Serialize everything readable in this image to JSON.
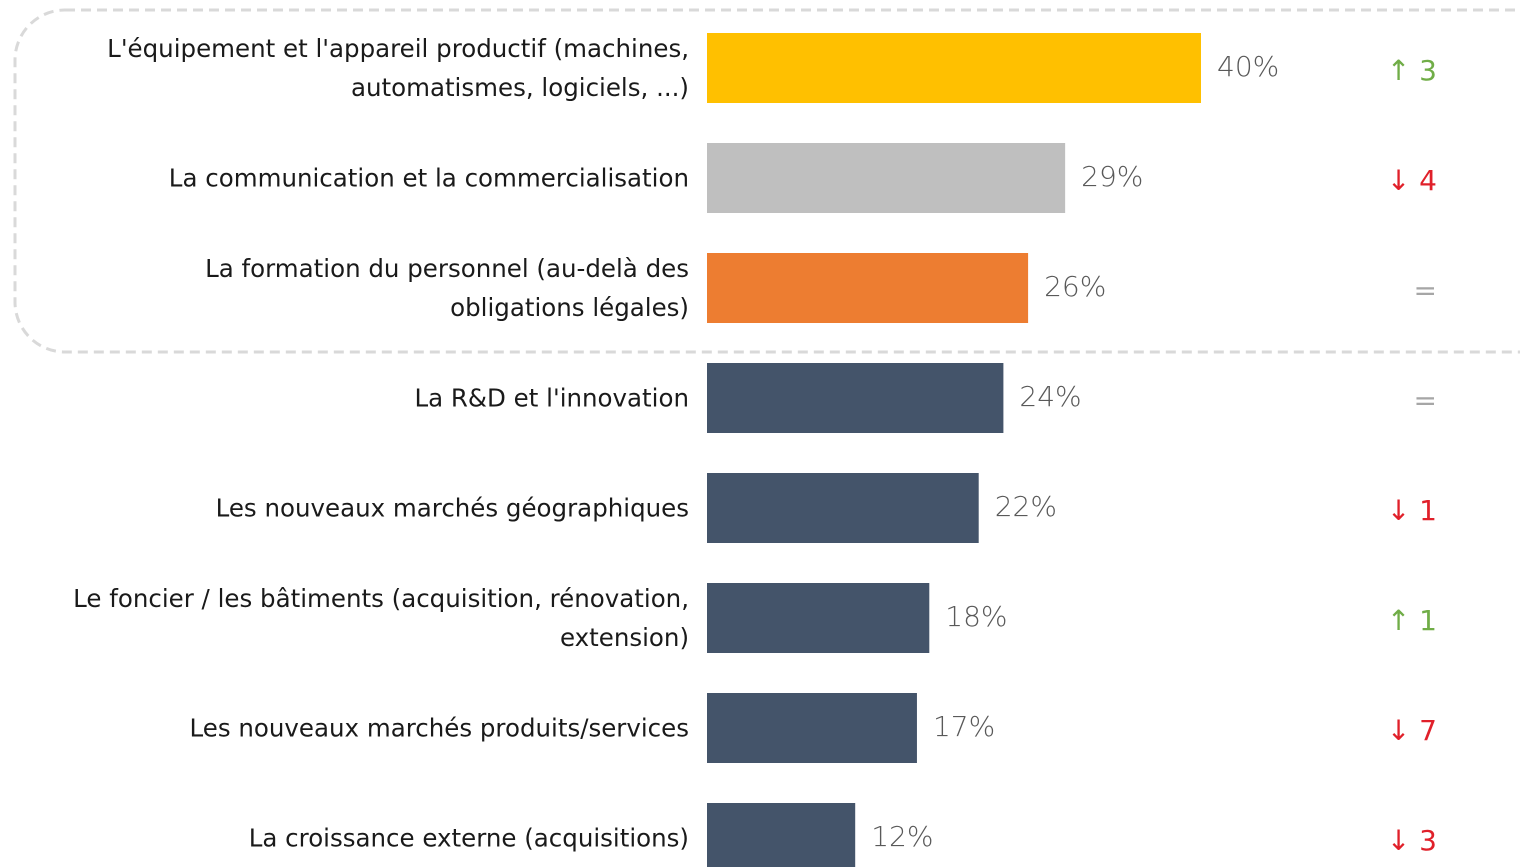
{
  "chart_data": {
    "type": "barh",
    "categories": [
      "L'équipement et l'appareil productif (machines,\nautomatismes, logiciels, ...)",
      "La communication et la commercialisation",
      "La formation du personnel (au-delà des\nobligations légales)",
      "La R&D et l'innovation",
      "Les nouveaux marchés géographiques",
      "Le foncier / les bâtiments (acquisition, rénovation,\nextension)",
      "Les nouveaux marchés produits/services",
      "La croissance externe (acquisitions)"
    ],
    "values": [
      40,
      29,
      26,
      24,
      22,
      18,
      17,
      12
    ],
    "value_labels": [
      "40%",
      "29%",
      "26%",
      "24%",
      "22%",
      "18%",
      "17%",
      "12%"
    ],
    "colors": [
      "#ffc000",
      "#bfbfbf",
      "#ed7d31",
      "#44546a",
      "#44546a",
      "#44546a",
      "#44546a",
      "#44546a"
    ],
    "changes": [
      "↑ 3",
      "↓ 4",
      "=",
      "=",
      "↓ 1",
      "↑ 1",
      "↓ 7",
      "↓ 3"
    ],
    "change_colors": [
      "#70ad47",
      "#e0202a",
      "#a6a6a6",
      "#a6a6a6",
      "#e0202a",
      "#70ad47",
      "#e0202a",
      "#e0202a"
    ],
    "xlim": [
      0,
      40
    ]
  }
}
